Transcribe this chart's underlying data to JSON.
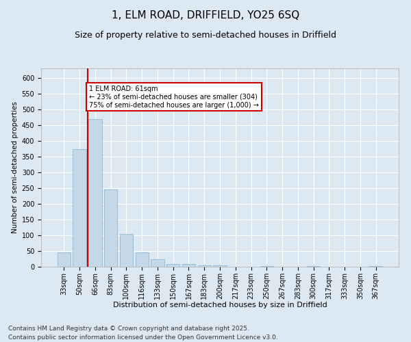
{
  "title1": "1, ELM ROAD, DRIFFIELD, YO25 6SQ",
  "title2": "Size of property relative to semi-detached houses in Driffield",
  "xlabel": "Distribution of semi-detached houses by size in Driffield",
  "ylabel": "Number of semi-detached properties",
  "categories": [
    "33sqm",
    "50sqm",
    "66sqm",
    "83sqm",
    "100sqm",
    "116sqm",
    "133sqm",
    "150sqm",
    "167sqm",
    "183sqm",
    "200sqm",
    "217sqm",
    "233sqm",
    "250sqm",
    "267sqm",
    "283sqm",
    "300sqm",
    "317sqm",
    "333sqm",
    "350sqm",
    "367sqm"
  ],
  "values": [
    46,
    374,
    470,
    245,
    105,
    46,
    24,
    9,
    9,
    5,
    4,
    0,
    0,
    2,
    0,
    0,
    2,
    0,
    0,
    0,
    3
  ],
  "bar_color": "#c5d8e8",
  "bar_edge_color": "#7fb3d0",
  "vline_x_index": 1.5,
  "vline_color": "#cc0000",
  "ylim": [
    0,
    630
  ],
  "yticks": [
    0,
    50,
    100,
    150,
    200,
    250,
    300,
    350,
    400,
    450,
    500,
    550,
    600
  ],
  "annotation_text": "1 ELM ROAD: 61sqm\n← 23% of semi-detached houses are smaller (304)\n75% of semi-detached houses are larger (1,000) →",
  "annotation_box_color": "#ffffff",
  "annotation_box_edge_color": "#cc0000",
  "footer1": "Contains HM Land Registry data © Crown copyright and database right 2025.",
  "footer2": "Contains public sector information licensed under the Open Government Licence v3.0.",
  "background_color": "#dce9f3",
  "plot_background_color": "#dce9f3",
  "grid_color": "#ffffff",
  "title1_fontsize": 11,
  "title2_fontsize": 9,
  "xlabel_fontsize": 8,
  "ylabel_fontsize": 7.5,
  "tick_fontsize": 7,
  "footer_fontsize": 6.5
}
